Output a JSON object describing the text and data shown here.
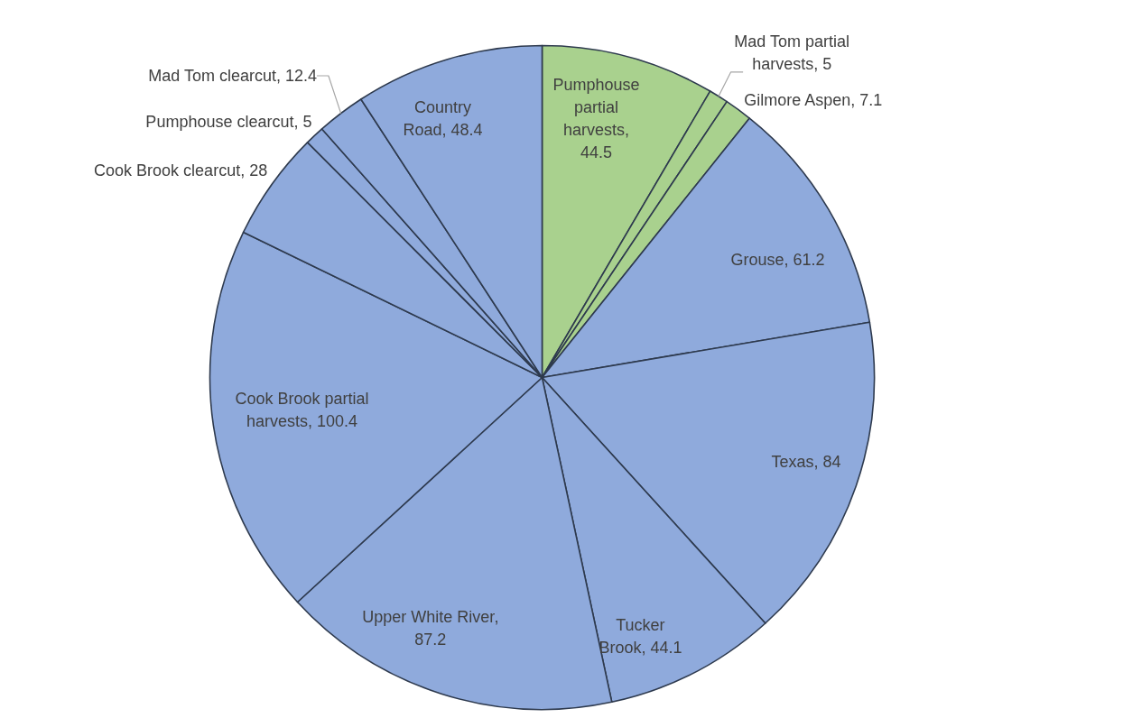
{
  "chart_data": {
    "type": "pie",
    "values": [
      44.5,
      5,
      7.1,
      61.2,
      84,
      44.1,
      87.2,
      100.4,
      28,
      5,
      12.4,
      48.4
    ],
    "value_labels": [
      "Pumphouse partial harvests, 44.5",
      "Mad Tom partial harvests, 5",
      "Gilmore Aspen, 7.1",
      "Grouse, 61.2",
      "Texas, 84",
      "Tucker Brook, 44.1",
      "Upper White River, 87.2",
      "Cook Brook partial harvests, 100.4",
      "Cook Brook clearcut, 28",
      "Pumphouse clearcut, 5",
      "Mad Tom clearcut, 12.4",
      "Country Road, 48.4"
    ],
    "colors": [
      "#a9d18e",
      "#a9d18e",
      "#a9d18e",
      "#8faadc",
      "#8faadc",
      "#8faadc",
      "#8faadc",
      "#8faadc",
      "#8faadc",
      "#8faadc",
      "#8faadc",
      "#8faadc"
    ]
  }
}
